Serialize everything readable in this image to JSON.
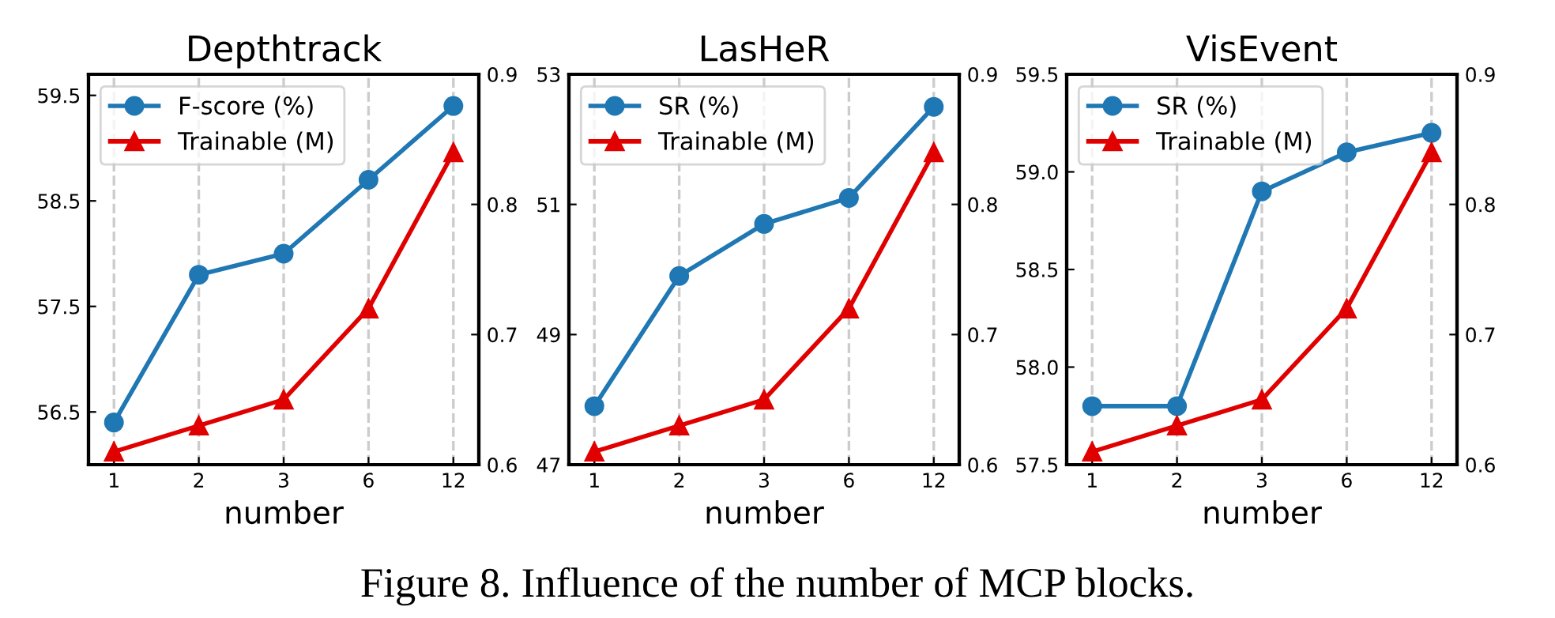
{
  "chart_data": [
    {
      "type": "line",
      "title": "Depthtrack",
      "xlabel": "number",
      "categories": [
        "1",
        "2",
        "3",
        "6",
        "12"
      ],
      "series": [
        {
          "name": "F-score (%)",
          "color": "#1f77b4",
          "marker": "circle",
          "values": [
            56.4,
            57.8,
            58.0,
            58.7,
            59.4
          ]
        },
        {
          "name": "Trainable (M)",
          "color": "#e00000",
          "marker": "triangle",
          "axis": "y2",
          "values": [
            0.61,
            0.63,
            0.65,
            0.72,
            0.84
          ]
        }
      ],
      "ylim": [
        56.0,
        59.7
      ],
      "yticks": [
        56.5,
        57.5,
        58.5,
        59.5
      ],
      "y2lim": [
        0.6,
        0.9
      ],
      "y2ticks": [
        0.6,
        0.7,
        0.8,
        0.9
      ],
      "grid": "x",
      "legend": "top left",
      "annotations": [
        "Figure 8. Influence of the number of MCP blocks."
      ]
    },
    {
      "type": "line",
      "title": "LasHeR",
      "xlabel": "number",
      "categories": [
        "1",
        "2",
        "3",
        "6",
        "12"
      ],
      "series": [
        {
          "name": "SR (%)",
          "color": "#1f77b4",
          "marker": "circle",
          "values": [
            47.9,
            49.9,
            50.7,
            51.1,
            52.5
          ]
        },
        {
          "name": "Trainable (M)",
          "color": "#e00000",
          "marker": "triangle",
          "axis": "y2",
          "values": [
            0.61,
            0.63,
            0.65,
            0.72,
            0.84
          ]
        }
      ],
      "ylim": [
        47,
        53
      ],
      "yticks": [
        47,
        49,
        51,
        53
      ],
      "y2lim": [
        0.6,
        0.9
      ],
      "y2ticks": [
        0.6,
        0.7,
        0.8,
        0.9
      ],
      "grid": "x",
      "legend": "top left"
    },
    {
      "type": "line",
      "title": "VisEvent",
      "xlabel": "number",
      "categories": [
        "1",
        "2",
        "3",
        "6",
        "12"
      ],
      "series": [
        {
          "name": "SR (%)",
          "color": "#1f77b4",
          "marker": "circle",
          "values": [
            57.8,
            57.8,
            58.9,
            59.1,
            59.2
          ]
        },
        {
          "name": "Trainable (M)",
          "color": "#e00000",
          "marker": "triangle",
          "axis": "y2",
          "values": [
            0.61,
            0.63,
            0.65,
            0.72,
            0.84
          ]
        }
      ],
      "ylim": [
        57.5,
        59.5
      ],
      "yticks": [
        {
          "value": 57.5,
          "label": "57.5"
        },
        {
          "value": 58.0,
          "label": "58.0"
        },
        {
          "value": 58.5,
          "label": "58.5"
        },
        {
          "value": 59.0,
          "label": "59.0"
        },
        {
          "value": 59.5,
          "label": "59.5"
        }
      ],
      "y2lim": [
        0.6,
        0.9
      ],
      "y2ticks": [
        0.6,
        0.7,
        0.8,
        0.9
      ],
      "grid": "x",
      "legend": "top left"
    }
  ]
}
